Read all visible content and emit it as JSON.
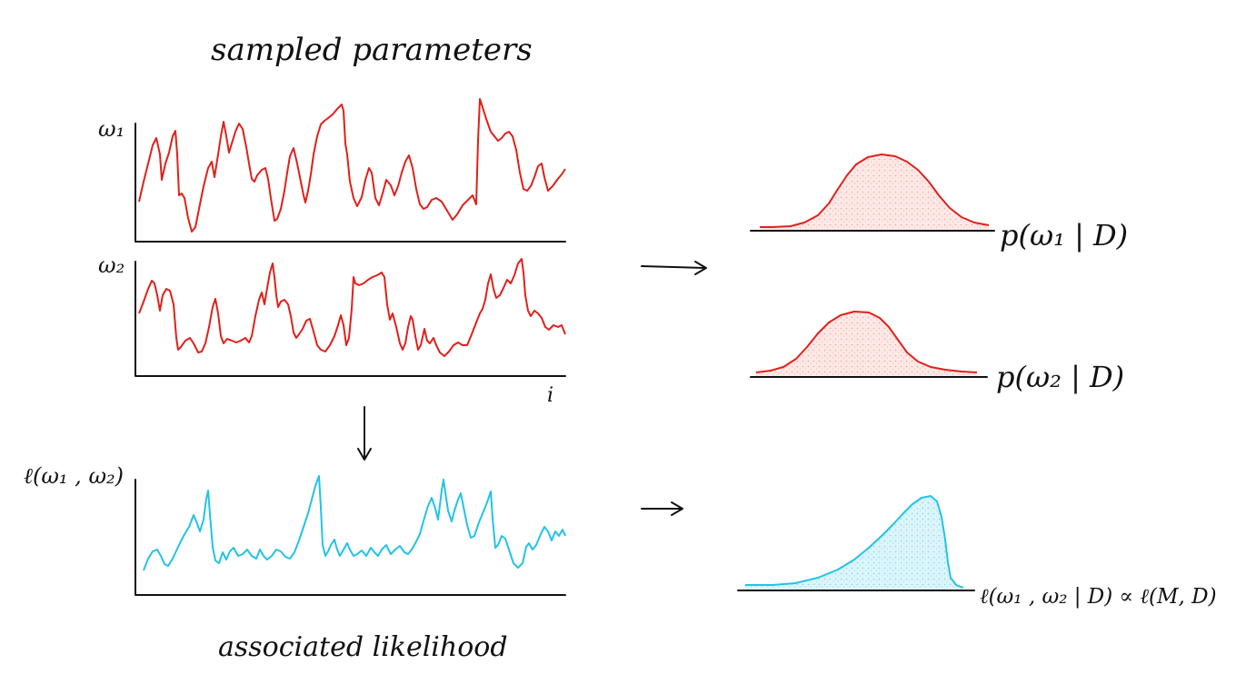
{
  "titles": {
    "top": "sampled parameters",
    "bottom": "associated likelihood"
  },
  "traces": {
    "w1_label": "ω₁",
    "w2_label": "ω₂",
    "index_label": "i",
    "likelihood_label": "ℓ(ω₁ , ω₂)"
  },
  "distributions": {
    "p_w1": "p(ω₁ | D)",
    "p_w2": "p(ω₂ | D)",
    "likelihood": "ℓ(ω₁ , ω₂ | D) ∝ ℓ(M, D)"
  },
  "colors": {
    "parameter_trace": "#e0201b",
    "likelihood_trace": "#22c3e6",
    "parameter_fill": "#fbd9d6",
    "likelihood_fill": "#c9eef7",
    "ink": "#111111"
  }
}
